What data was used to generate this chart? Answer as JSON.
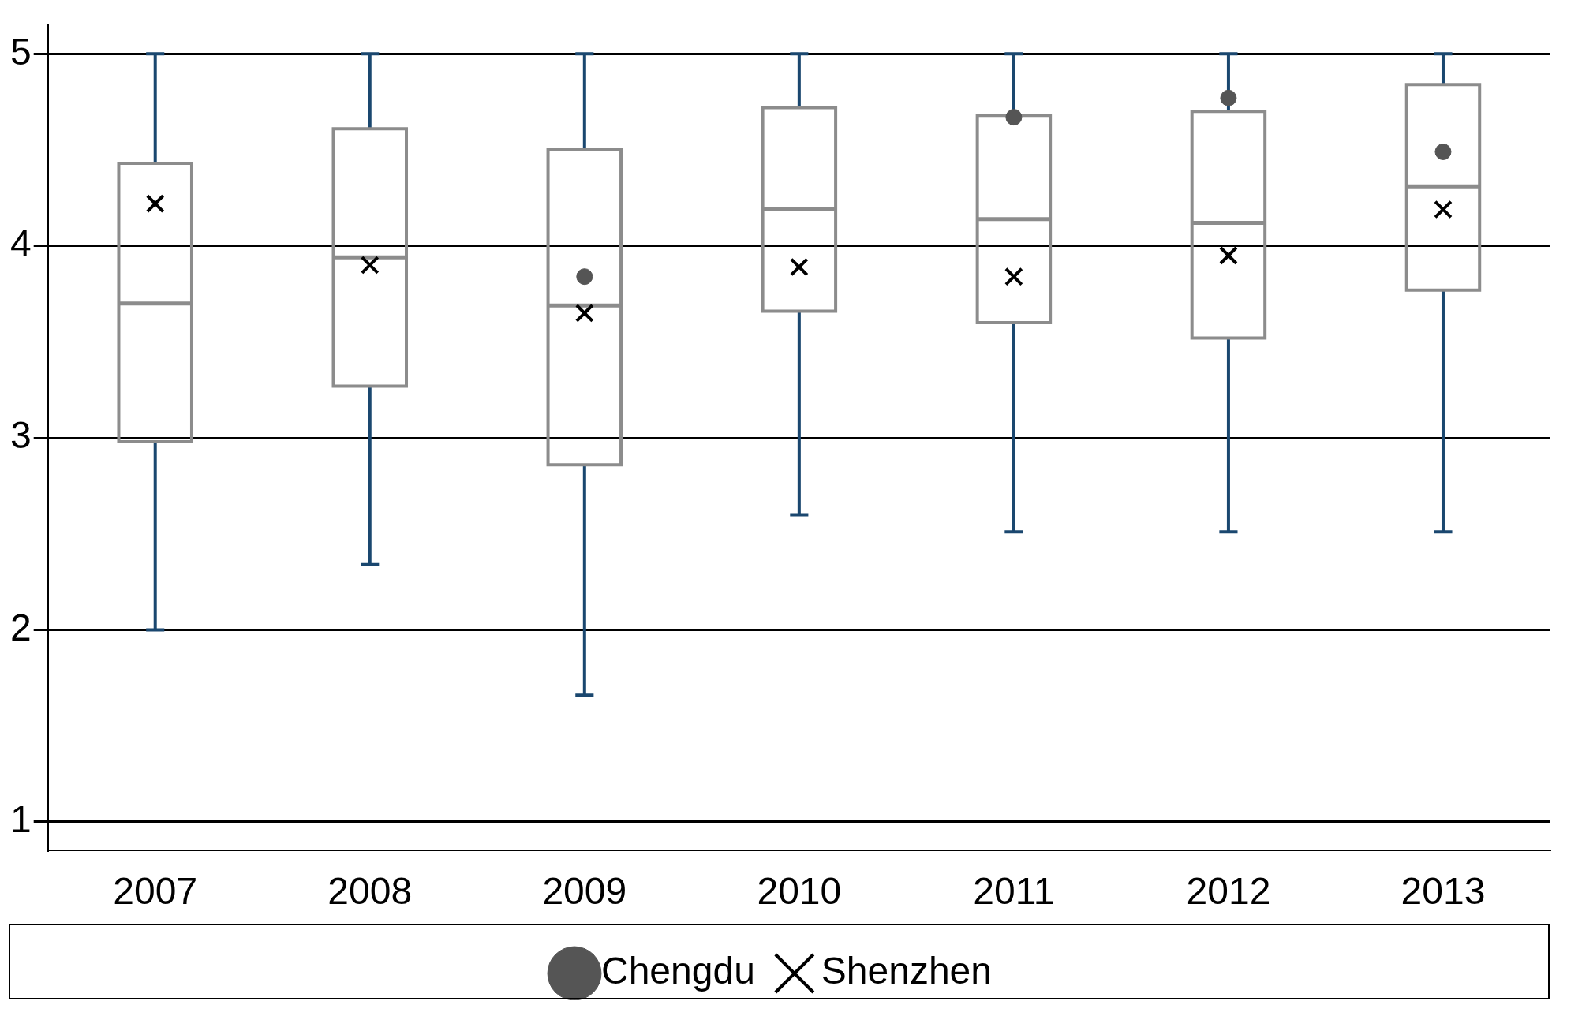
{
  "chart_data": {
    "type": "box",
    "categories": [
      "2007",
      "2008",
      "2009",
      "2010",
      "2011",
      "2012",
      "2013"
    ],
    "color": "#8c8c8c",
    "boxes": [
      {
        "low": 2.0,
        "q1": 2.98,
        "median": 3.7,
        "q3": 4.43,
        "high": 5.0
      },
      {
        "low": 2.34,
        "q1": 3.27,
        "median": 3.94,
        "q3": 4.61,
        "high": 5.0
      },
      {
        "low": 1.66,
        "q1": 2.86,
        "median": 3.69,
        "q3": 4.5,
        "high": 5.0
      },
      {
        "low": 2.6,
        "q1": 3.66,
        "median": 4.19,
        "q3": 4.72,
        "high": 5.0
      },
      {
        "low": 2.51,
        "q1": 3.6,
        "median": 4.14,
        "q3": 4.68,
        "high": 5.0
      },
      {
        "low": 2.51,
        "q1": 3.52,
        "median": 4.12,
        "q3": 4.7,
        "high": 5.0
      },
      {
        "low": 2.51,
        "q1": 3.77,
        "median": 4.31,
        "q3": 4.84,
        "high": 5.0
      }
    ],
    "series": [
      {
        "name": "Chengdu",
        "type": "scatter",
        "marker": "circle",
        "color": "#555555",
        "values": [
          null,
          null,
          3.84,
          null,
          4.67,
          4.77,
          4.49
        ]
      },
      {
        "name": "Shenzhen",
        "type": "scatter",
        "marker": "cross",
        "color": "#000000",
        "values": [
          4.22,
          3.9,
          3.65,
          3.89,
          3.84,
          3.95,
          4.19
        ]
      }
    ],
    "ylim": [
      0.85,
      5.15
    ],
    "yticks": [
      1,
      2,
      3,
      4,
      5
    ],
    "grid": "y",
    "legend": "bottom"
  }
}
